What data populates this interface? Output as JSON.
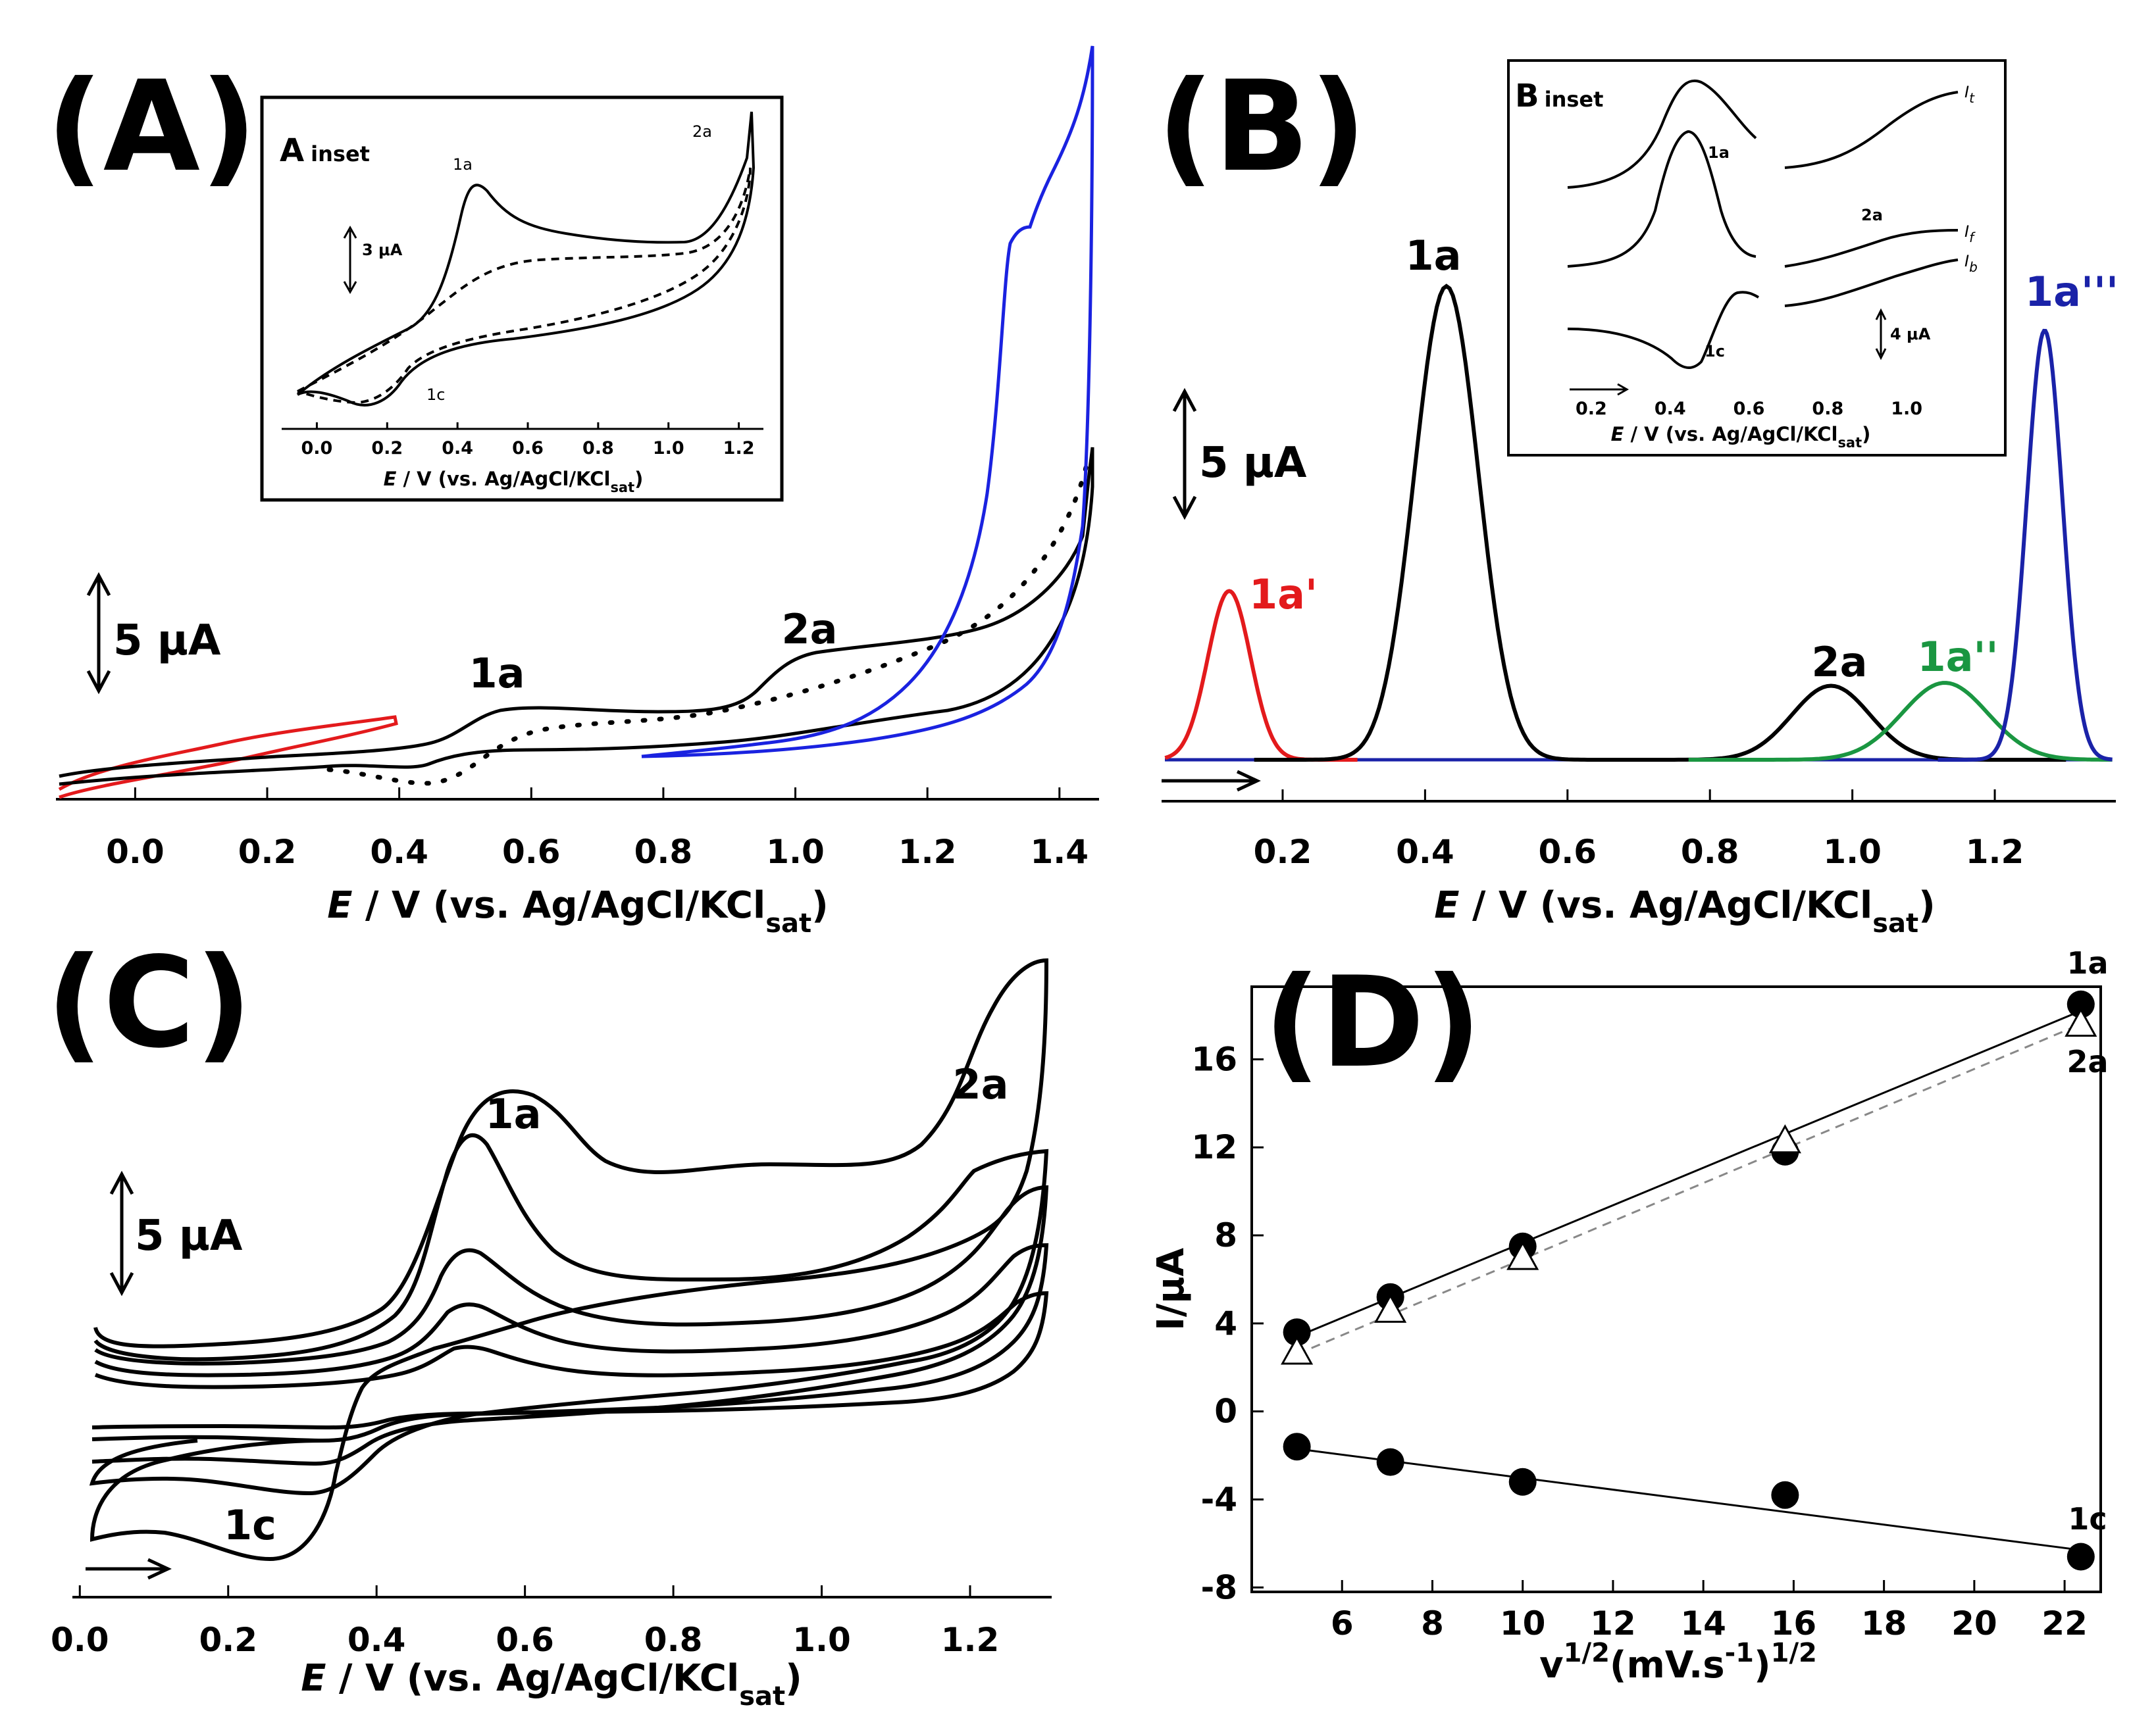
{
  "panels": {
    "A": {
      "letter": "(A)",
      "x_ticks": [
        "0.0",
        "0.2",
        "0.4",
        "0.6",
        "0.8",
        "1.0",
        "1.2",
        "1.4"
      ],
      "xlabel": {
        "prefix": "E",
        "mid": " / V (vs. Ag/AgCl/KCl",
        "sub": "sat",
        "suffix": ")"
      },
      "scale_bar": "5 μA",
      "peak_labels": [
        "1a",
        "2a"
      ],
      "inset": {
        "head": "A",
        "head_small": "inset",
        "scale_bar": "3 μA",
        "x_ticks": [
          "0.0",
          "0.2",
          "0.4",
          "0.6",
          "0.8",
          "1.0",
          "1.2"
        ],
        "xlabel": {
          "prefix": "E",
          "mid": " / V (vs. Ag/AgCl/KCl",
          "sub": "sat",
          "suffix": ")"
        },
        "peak_labels": [
          "1a",
          "2a",
          "1c"
        ]
      }
    },
    "B": {
      "letter": "(B)",
      "x_ticks": [
        "0.2",
        "0.4",
        "0.6",
        "0.8",
        "1.0",
        "1.2"
      ],
      "xlabel": {
        "prefix": "E",
        "mid": " / V (vs. Ag/AgCl/KCl",
        "sub": "sat",
        "suffix": ")"
      },
      "scale_bar": "5 μA",
      "peak_labels": {
        "p1": "1a'",
        "p2": "1a",
        "p3": "2a",
        "p4": "1a''",
        "p5": "1a'''"
      },
      "inset": {
        "head": "B",
        "head_small": "inset",
        "scale_bar": "4 μA",
        "x_ticks": [
          "0.2",
          "0.4",
          "0.6",
          "0.8",
          "1.0"
        ],
        "xlabel": {
          "prefix": "E",
          "mid": " / V (vs. Ag/AgCl/KCl",
          "sub": "sat",
          "suffix": ")"
        },
        "labels": {
          "l1": "1a",
          "l2": "1c",
          "l3": "2a"
        },
        "current_labels": {
          "t": "I",
          "t_sub": "t",
          "f": "I",
          "f_sub": "f",
          "b": "I",
          "b_sub": "b"
        }
      }
    },
    "C": {
      "letter": "(C)",
      "x_ticks": [
        "0.0",
        "0.2",
        "0.4",
        "0.6",
        "0.8",
        "1.0",
        "1.2"
      ],
      "xlabel": {
        "prefix": "E",
        "mid": " / V (vs. Ag/AgCl/KCl",
        "sub": "sat",
        "suffix": ")"
      },
      "scale_bar": "5 μA",
      "peak_labels": [
        "1a",
        "2a",
        "1c"
      ]
    },
    "D": {
      "letter": "(D)",
      "ylabel": "I/μA",
      "xlabel": {
        "base": "v",
        "sup": "1/2",
        "mid": "(mV.s",
        "sup2": "-1",
        "end": ")",
        "sup3": "1/2"
      },
      "series_labels": [
        "1a",
        "2a",
        "1c"
      ]
    }
  },
  "chart_data": [
    {
      "panel": "A",
      "type": "line",
      "title": "",
      "xlabel": "E / V (vs. Ag/AgCl/KClsat)",
      "ylabel": "",
      "xlim": [
        -0.12,
        1.46
      ],
      "x_ticks": [
        0.0,
        0.2,
        0.4,
        0.6,
        0.8,
        1.0,
        1.2,
        1.4
      ],
      "y_scale_bar_uA": 5,
      "series": [
        {
          "name": "red CV",
          "color": "#e31a1c",
          "style": "solid",
          "x_range": [
            -0.1,
            0.41
          ]
        },
        {
          "name": "black CV",
          "color": "#000000",
          "style": "solid",
          "x_range": [
            -0.1,
            1.46
          ]
        },
        {
          "name": "black CV (dotted)",
          "color": "#000000",
          "style": "dotted",
          "x_range": [
            0.3,
            1.46
          ]
        },
        {
          "name": "blue CV",
          "color": "#1a22e0",
          "style": "solid",
          "x_range": [
            0.78,
            1.45
          ]
        }
      ],
      "annotations": [
        {
          "text": "1a",
          "x": 0.54
        },
        {
          "text": "2a",
          "x": 1.03
        }
      ]
    },
    {
      "panel": "A inset",
      "type": "line",
      "xlim": [
        -0.1,
        1.27
      ],
      "x_ticks": [
        0.0,
        0.2,
        0.4,
        0.6,
        0.8,
        1.0,
        1.2
      ],
      "y_scale_bar_uA": 3,
      "series": [
        {
          "name": "solid",
          "style": "solid",
          "peaks": {
            "1a": 0.47,
            "1c": 0.2,
            "2a": 1.24
          }
        },
        {
          "name": "dashed",
          "style": "dashed"
        }
      ]
    },
    {
      "panel": "B",
      "type": "line",
      "xlabel": "E / V (vs. Ag/AgCl/KClsat)",
      "xlim": [
        0.03,
        1.37
      ],
      "x_ticks": [
        0.2,
        0.4,
        0.6,
        0.8,
        1.0,
        1.2
      ],
      "y_scale_bar_uA": 5,
      "series": [
        {
          "name": "1a'",
          "color": "#e31a1c",
          "peak_x": 0.125,
          "peak_height_uA": 5.7,
          "width": 0.03
        },
        {
          "name": "1a",
          "color": "#000000",
          "peak_x": 0.43,
          "peak_height_uA": 16.0,
          "width": 0.045
        },
        {
          "name": "2a",
          "color": "#000000",
          "peak_x": 0.97,
          "peak_height_uA": 2.5,
          "width": 0.055
        },
        {
          "name": "1a''",
          "color": "#1a9641",
          "peak_x": 1.13,
          "peak_height_uA": 2.6,
          "width": 0.06
        },
        {
          "name": "1a'''",
          "color": "#1a22a8",
          "peak_x": 1.27,
          "peak_height_uA": 14.5,
          "width": 0.025
        }
      ]
    },
    {
      "panel": "B inset",
      "type": "line",
      "x_ticks": [
        0.2,
        0.4,
        0.6,
        0.8,
        1.0
      ],
      "y_scale_bar_uA": 4,
      "series": [
        {
          "name": "It"
        },
        {
          "name": "If"
        },
        {
          "name": "Ib"
        }
      ]
    },
    {
      "panel": "C",
      "type": "line",
      "xlabel": "E / V (vs. Ag/AgCl/KClsat)",
      "xlim": [
        -0.01,
        1.31
      ],
      "x_ticks": [
        0.0,
        0.2,
        0.4,
        0.6,
        0.8,
        1.0,
        1.2
      ],
      "y_scale_bar_uA": 5,
      "series": [
        {
          "name": "CV 1 (largest)",
          "peak_1a_x": 0.59
        },
        {
          "name": "CV 2",
          "peak_1a_x": 0.52
        },
        {
          "name": "CV 3",
          "peak_1a_x": 0.52
        },
        {
          "name": "CV 4",
          "peak_1a_x": 0.52
        },
        {
          "name": "CV 5 (smallest)",
          "peak_1a_x": 0.52
        }
      ]
    },
    {
      "panel": "D",
      "type": "scatter",
      "xlabel": "v1/2(mV.s-1)1/2",
      "ylabel": "I/μA",
      "xlim": [
        4.0,
        22.8
      ],
      "ylim": [
        -8.2,
        19.3
      ],
      "x_ticks": [
        6,
        8,
        10,
        12,
        14,
        16,
        18,
        20,
        22
      ],
      "y_ticks": [
        -8,
        -4,
        0,
        4,
        8,
        12,
        16
      ],
      "series": [
        {
          "name": "1a",
          "marker": "filled-circle",
          "x": [
            5.0,
            7.07,
            10.0,
            15.81,
            22.36
          ],
          "y": [
            3.6,
            5.2,
            7.5,
            11.8,
            18.5
          ],
          "fit": [
            [
              5.0,
              3.4
            ],
            [
              22.36,
              18.2
            ]
          ],
          "fit_style": "solid"
        },
        {
          "name": "2a",
          "marker": "open-triangle",
          "x": [
            5.0,
            7.07,
            10.0,
            15.81,
            22.36
          ],
          "y": [
            2.7,
            4.6,
            7.0,
            12.3,
            17.6
          ],
          "fit": [
            [
              5.0,
              2.6
            ],
            [
              22.36,
              17.6
            ]
          ],
          "fit_style": "dashed"
        },
        {
          "name": "1c",
          "marker": "filled-circle",
          "x": [
            5.0,
            7.07,
            10.0,
            15.81,
            22.36
          ],
          "y": [
            -1.6,
            -2.3,
            -3.2,
            -3.8,
            -6.6
          ],
          "fit": [
            [
              5.0,
              -1.7
            ],
            [
              22.36,
              -6.3
            ]
          ],
          "fit_style": "solid"
        }
      ]
    }
  ]
}
